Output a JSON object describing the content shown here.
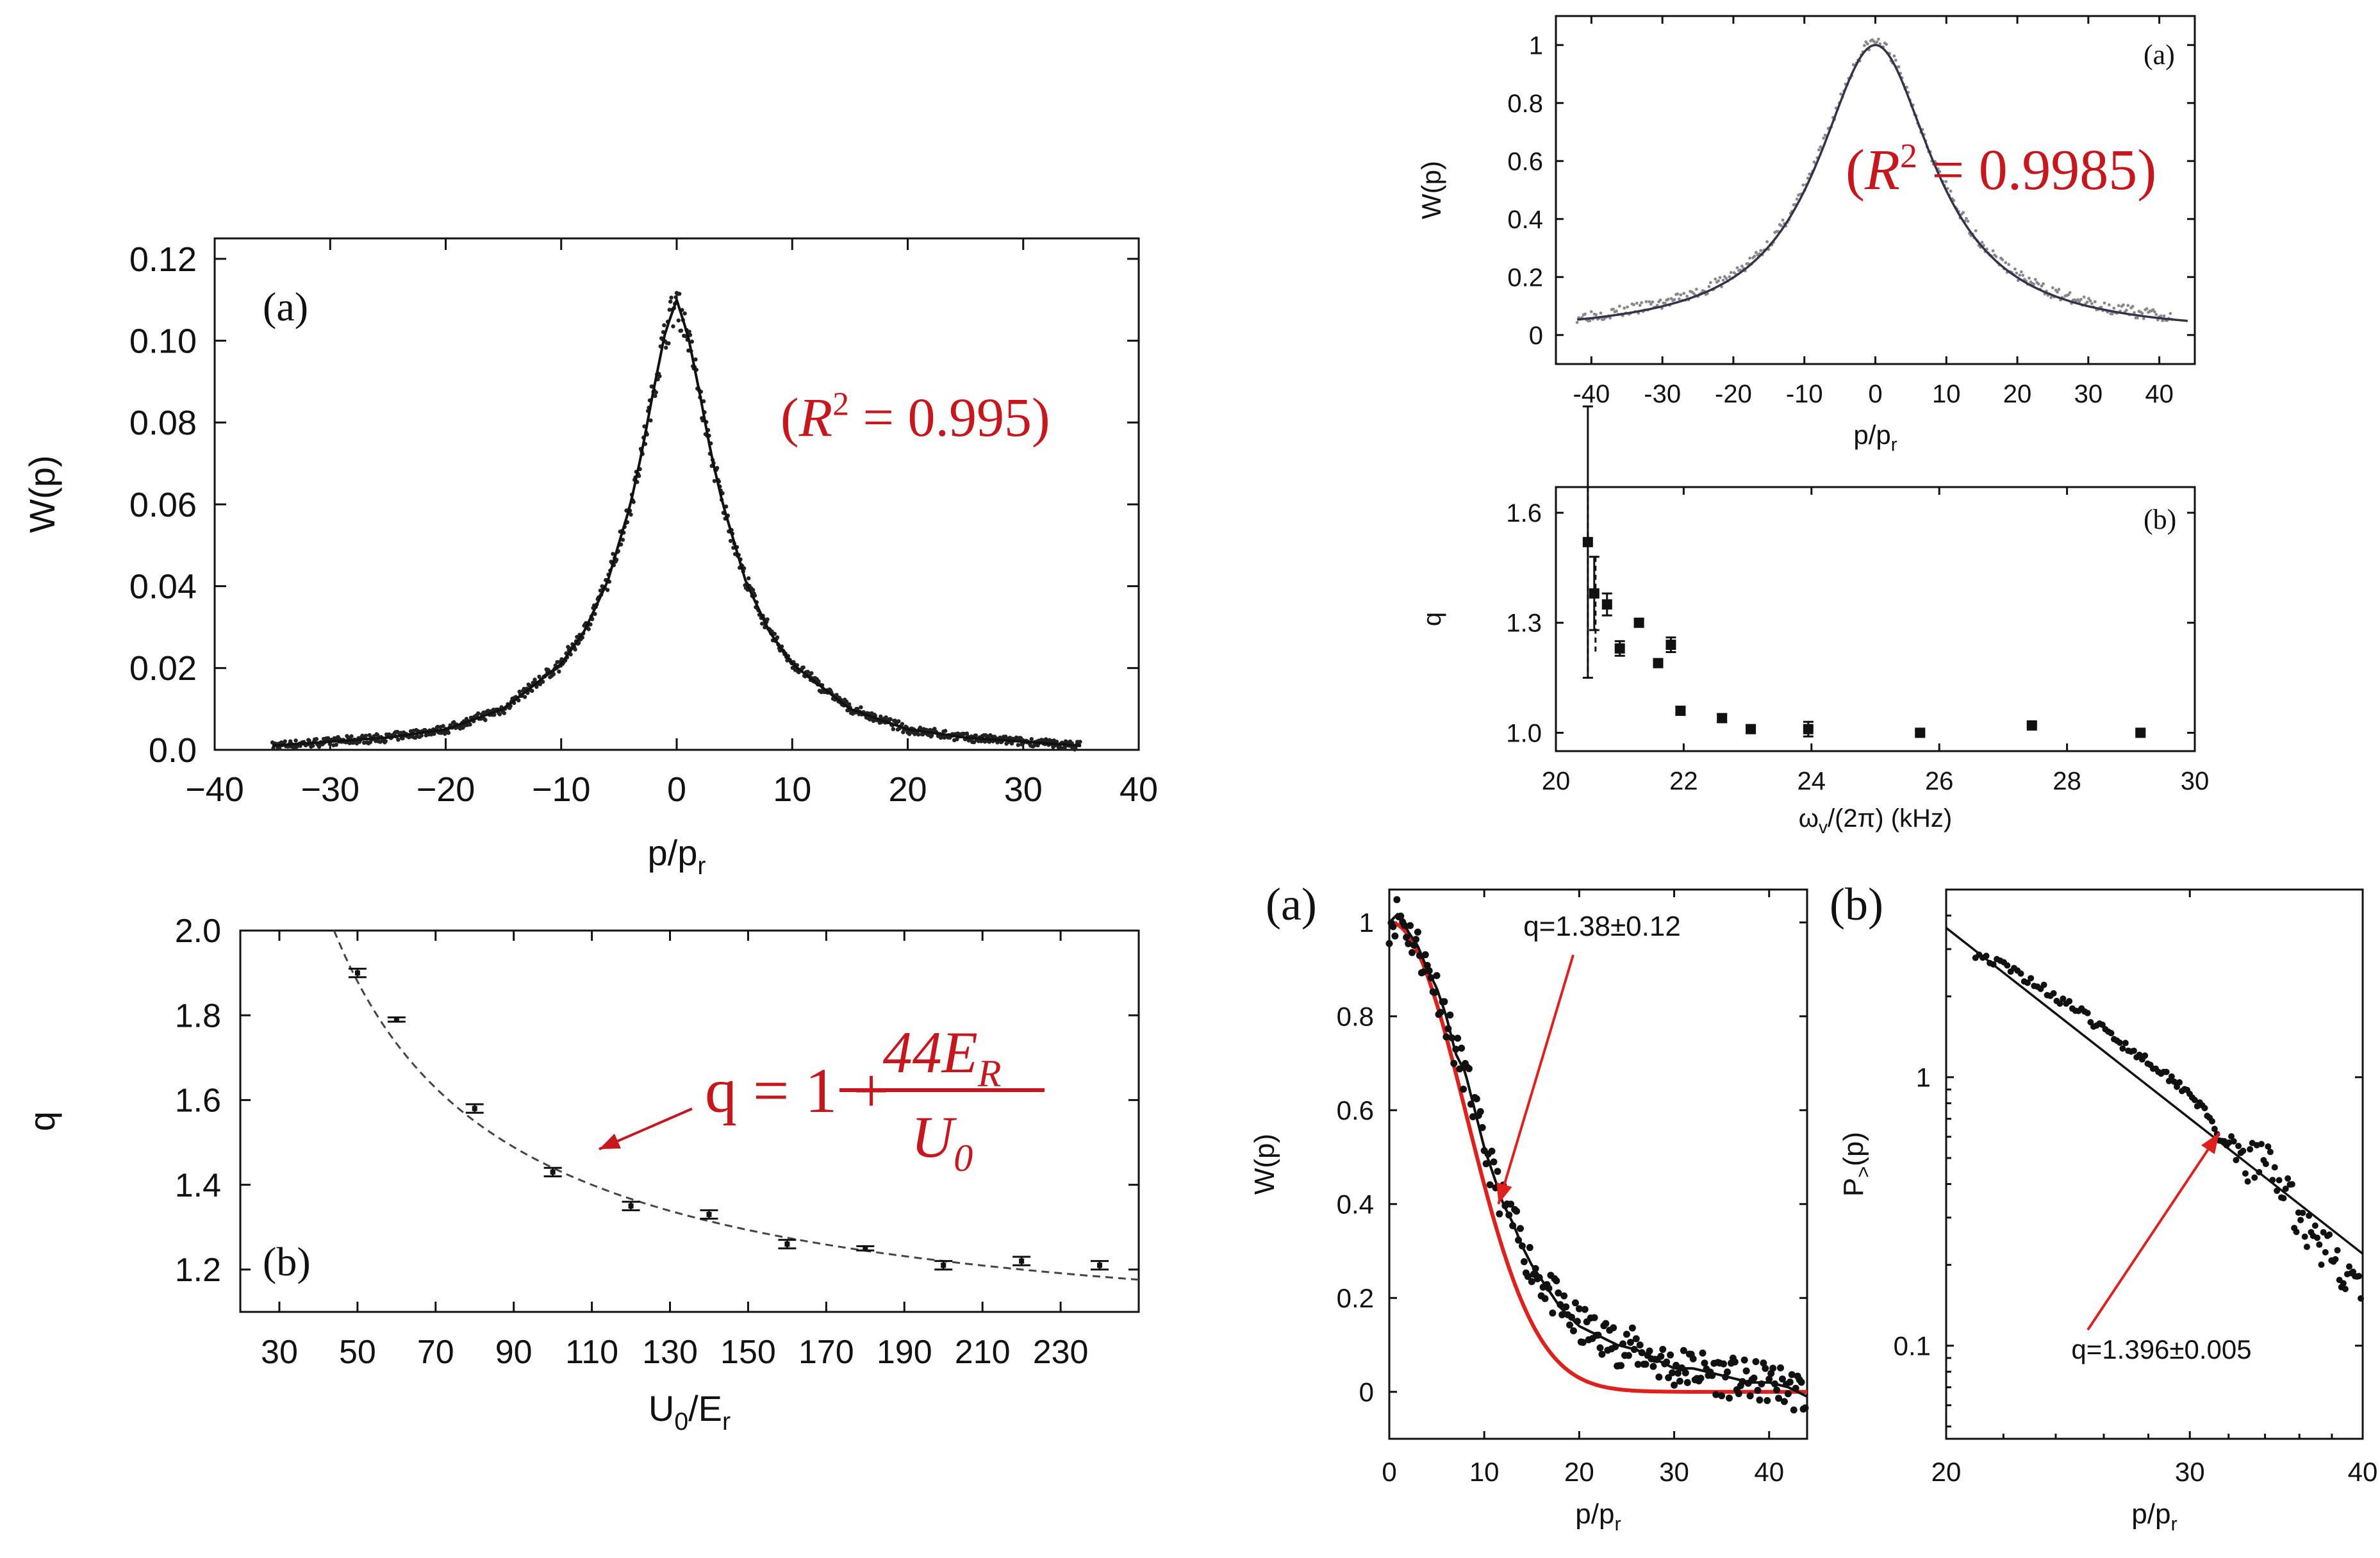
{
  "chart_data": [
    {
      "id": "left_a",
      "type": "scatter",
      "panel_label": "(a)",
      "xlabel": "p/p",
      "xlabel_sub": "r",
      "ylabel": "W(p)",
      "xlim": [
        -40,
        40
      ],
      "ylim": [
        0,
        0.125
      ],
      "xticks": [
        -40,
        -30,
        -20,
        -10,
        0,
        10,
        20,
        30,
        40
      ],
      "xtick_labels": [
        "−40",
        "−30",
        "−20",
        "−10",
        "0",
        "10",
        "20",
        "30",
        "40"
      ],
      "yticks": [
        0,
        0.02,
        0.04,
        0.06,
        0.08,
        0.1,
        0.12
      ],
      "ytick_labels": [
        "0.0",
        "0.02",
        "0.04",
        "0.06",
        "0.08",
        "0.10",
        "0.12"
      ],
      "annotation": {
        "prefix": "(",
        "var": "R",
        "sup": "2",
        "rest": " = 0.995)"
      },
      "series": [
        {
          "kind": "points",
          "x": [
            -35,
            -30,
            -25,
            -20,
            -15,
            -10,
            -8,
            -6,
            -4,
            -3,
            -2,
            -1,
            0,
            1,
            2,
            3,
            4,
            6,
            8,
            10,
            15,
            20,
            25,
            30,
            35
          ],
          "y": [
            0.001,
            0.002,
            0.003,
            0.005,
            0.01,
            0.021,
            0.029,
            0.041,
            0.06,
            0.073,
            0.088,
            0.102,
            0.11,
            0.101,
            0.087,
            0.072,
            0.06,
            0.041,
            0.029,
            0.021,
            0.01,
            0.005,
            0.003,
            0.002,
            0.001
          ]
        }
      ]
    },
    {
      "id": "left_b",
      "type": "scatter",
      "panel_label": "(b)",
      "xlabel": "U",
      "xlabel_sub": "0",
      "xlabel_rest": "/E",
      "xlabel_sub2": "r",
      "ylabel": "q",
      "xlim": [
        20,
        250
      ],
      "ylim": [
        1.1,
        2.0
      ],
      "xticks": [
        30,
        50,
        70,
        90,
        110,
        130,
        150,
        170,
        190,
        210,
        230
      ],
      "yticks": [
        1.2,
        1.4,
        1.6,
        1.8,
        2.0
      ],
      "ytick_labels": [
        "1.2",
        "1.4",
        "1.6",
        "1.8",
        "2.0"
      ],
      "formula": {
        "lhs": "q = 1 + ",
        "num": "44E",
        "num_sub": "R",
        "den": "U",
        "den_sub": "0"
      },
      "series": [
        {
          "kind": "errorbar",
          "x": [
            50,
            60,
            80,
            100,
            120,
            140,
            160,
            180,
            200,
            220,
            240
          ],
          "y": [
            1.9,
            1.79,
            1.58,
            1.43,
            1.35,
            1.33,
            1.26,
            1.25,
            1.21,
            1.22,
            1.21
          ],
          "err": [
            0.01,
            0.005,
            0.01,
            0.01,
            0.01,
            0.01,
            0.01,
            0.005,
            0.01,
            0.01,
            0.01
          ]
        },
        {
          "kind": "dashed_curve",
          "model": "1 + 44/x",
          "x_range": [
            44,
            250
          ]
        }
      ]
    },
    {
      "id": "right_top_a",
      "type": "line",
      "panel_label": "(a)",
      "xlabel": "p/p",
      "xlabel_sub": "r",
      "ylabel": "W(p)",
      "xlim": [
        -45,
        45
      ],
      "ylim": [
        -0.1,
        1.1
      ],
      "xticks": [
        -40,
        -30,
        -20,
        -10,
        0,
        10,
        20,
        30,
        40
      ],
      "yticks": [
        0,
        0.2,
        0.4,
        0.6,
        0.8,
        1
      ],
      "ytick_labels": [
        "0",
        "0.2",
        "0.4",
        "0.6",
        "0.8",
        "1"
      ],
      "annotation": {
        "prefix": "(",
        "var": "R",
        "sup": "2",
        "rest": " = 0.9985)"
      },
      "series": [
        {
          "kind": "points",
          "x": [
            -40,
            -30,
            -20,
            -15,
            -10,
            -8,
            -6,
            -4,
            -2,
            0,
            2,
            4,
            6,
            8,
            10,
            15,
            20,
            30,
            40
          ],
          "y": [
            0.03,
            0.04,
            0.08,
            0.17,
            0.38,
            0.5,
            0.64,
            0.8,
            0.94,
            1.0,
            0.94,
            0.8,
            0.64,
            0.5,
            0.38,
            0.17,
            0.08,
            0.03,
            0.01
          ]
        }
      ]
    },
    {
      "id": "right_top_b",
      "type": "scatter",
      "panel_label": "(b)",
      "xlabel": "ω",
      "xlabel_sub": "v",
      "xlabel_rest": "/(2π) (kHz)",
      "ylabel": "q",
      "xlim": [
        20,
        30
      ],
      "ylim": [
        0.95,
        1.67
      ],
      "xticks": [
        20,
        22,
        24,
        26,
        28,
        30
      ],
      "yticks": [
        1.0,
        1.3,
        1.6
      ],
      "ytick_labels": [
        "1.0",
        "1.3",
        "1.6"
      ],
      "series": [
        {
          "kind": "errorbar",
          "x": [
            20.5,
            20.6,
            20.8,
            21.0,
            21.3,
            21.6,
            21.8,
            21.95,
            22.6,
            23.05,
            23.95,
            25.7,
            27.45,
            29.15
          ],
          "y": [
            1.52,
            1.38,
            1.35,
            1.23,
            1.3,
            1.19,
            1.24,
            1.06,
            1.04,
            1.01,
            1.01,
            1.0,
            1.02,
            1.0
          ],
          "err": [
            0.37,
            0.1,
            0.03,
            0.02,
            0.01,
            0.01,
            0.02,
            0.01,
            0.01,
            0.01,
            0.02,
            0.005,
            0.005,
            0.005
          ]
        }
      ]
    },
    {
      "id": "right_bottom_a",
      "type": "scatter",
      "panel_label": "(a)",
      "xlabel": "p/p",
      "xlabel_sub": "r",
      "ylabel": "W(p)",
      "xlim": [
        0,
        44
      ],
      "ylim": [
        -0.1,
        1.07
      ],
      "xticks": [
        0,
        10,
        20,
        30,
        40
      ],
      "yticks": [
        0,
        0.2,
        0.4,
        0.6,
        0.8,
        1
      ],
      "ytick_labels": [
        "0",
        "0.2",
        "0.4",
        "0.6",
        "0.8",
        "1"
      ],
      "annotation_text": "q=1.38±0.12",
      "annotation_arrow_to": [
        11.5,
        0.4
      ],
      "series": [
        {
          "kind": "points",
          "x": [
            0,
            1,
            2,
            3,
            4,
            5,
            6,
            7,
            8,
            9,
            10,
            11,
            12,
            13,
            14,
            15,
            16,
            17,
            18,
            19,
            20,
            22,
            24,
            26,
            28,
            30,
            32,
            34,
            36,
            38,
            40,
            42,
            44
          ],
          "y": [
            1.0,
            1.02,
            0.98,
            0.95,
            0.9,
            0.86,
            0.8,
            0.72,
            0.68,
            0.6,
            0.52,
            0.46,
            0.4,
            0.36,
            0.31,
            0.27,
            0.24,
            0.21,
            0.18,
            0.16,
            0.14,
            0.12,
            0.1,
            0.09,
            0.07,
            0.05,
            0.05,
            0.04,
            0.03,
            0.02,
            0.02,
            0.01,
            -0.01
          ]
        },
        {
          "kind": "red_curve",
          "model": "exp(-(x/11)^2.1)"
        },
        {
          "kind": "black_curve",
          "model": "q-gaussian q=1.38"
        }
      ]
    },
    {
      "id": "right_bottom_b",
      "type": "scatter",
      "panel_label": "(b)",
      "xlabel": "p/p",
      "xlabel_sub": "r",
      "ylabel": "P",
      "ylabel_sub": ">",
      "ylabel_rest": "(p)",
      "xscale": "log",
      "yscale": "log",
      "xlim": [
        20,
        40
      ],
      "ylim": [
        0.045,
        5.0
      ],
      "xticks": [
        20,
        30,
        40
      ],
      "yticks": [
        0.1,
        1
      ],
      "ytick_labels": [
        "0.1",
        "1"
      ],
      "annotation_text": "q=1.396±0.005",
      "annotation_arrow_to": [
        31.5,
        0.62
      ],
      "series": [
        {
          "kind": "points",
          "x": [
            21,
            22,
            23,
            24,
            25,
            26,
            27,
            28,
            29,
            30,
            31,
            32,
            33,
            34,
            35,
            36,
            37,
            38,
            39,
            40
          ],
          "y": [
            2.9,
            2.6,
            2.3,
            2.0,
            1.75,
            1.5,
            1.3,
            1.15,
            1.0,
            0.88,
            0.7,
            0.52,
            0.48,
            0.5,
            0.4,
            0.3,
            0.25,
            0.22,
            0.18,
            0.16
          ]
        },
        {
          "kind": "line",
          "x": [
            20,
            40
          ],
          "y": [
            3.6,
            0.22
          ]
        }
      ]
    }
  ]
}
